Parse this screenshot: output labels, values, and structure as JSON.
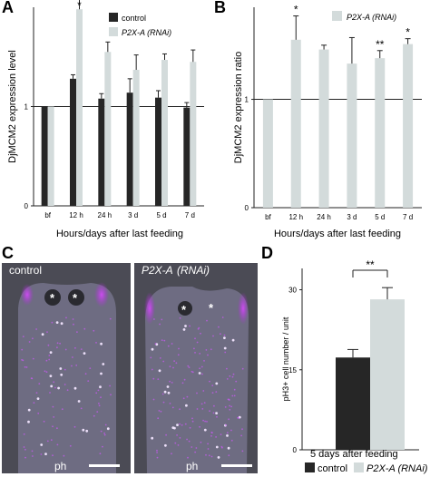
{
  "panels": {
    "A": {
      "letter": "A"
    },
    "B": {
      "letter": "B"
    },
    "C": {
      "letter": "C",
      "left_label": "control",
      "right_label_main": "P2X-A",
      "right_label_paren": "(RNAi)",
      "bottom_labels": [
        "ph",
        "ph"
      ]
    },
    "D": {
      "letter": "D",
      "caption": "5 days after feeding",
      "significance": "**",
      "legend": [
        "control",
        "P2X-A (RNAi)"
      ]
    }
  },
  "colors": {
    "control": "#262626",
    "rnai": "#d3dbdb",
    "micrograph_bg": "#4b4b55",
    "worm": "#6c6a7e",
    "glow": "#b327e6"
  },
  "chart_data": [
    {
      "id": "A",
      "type": "bar",
      "ylabel": "DjMCM2  expression level",
      "xlabel": "Hours/days after last feeding",
      "categories": [
        "bf",
        "12 h",
        "24 h",
        "3 d",
        "5 d",
        "7 d"
      ],
      "ylim": [
        0,
        2
      ],
      "yticks": [
        0,
        1
      ],
      "reference_line": 1,
      "series": [
        {
          "name": "control",
          "values": [
            1.0,
            1.28,
            1.08,
            1.14,
            1.09,
            0.99
          ],
          "errors": [
            0,
            0.04,
            0.05,
            0.14,
            0.07,
            0.05
          ]
        },
        {
          "name": "P2X-A (RNAi)",
          "values": [
            1.0,
            1.98,
            1.55,
            1.37,
            1.47,
            1.45
          ],
          "errors": [
            0,
            0.28,
            0.1,
            0.15,
            0.06,
            0.12
          ]
        }
      ],
      "annotations": [
        {
          "category": "12 h",
          "text": "*"
        }
      ],
      "legend_position": "top-right"
    },
    {
      "id": "B",
      "type": "bar",
      "ylabel": "DjMCM2  expression ratio",
      "xlabel": "Hours/days after last feeding",
      "categories": [
        "bf",
        "12 h",
        "24 h",
        "3 d",
        "5 d",
        "7 d"
      ],
      "ylim": [
        0,
        1.85
      ],
      "yticks": [
        0,
        1
      ],
      "reference_line": 1,
      "series": [
        {
          "name": "P2X-A (RNAi)",
          "values": [
            1.0,
            1.55,
            1.46,
            1.33,
            1.38,
            1.51
          ],
          "errors": [
            0,
            0.22,
            0.04,
            0.24,
            0.07,
            0.05
          ]
        }
      ],
      "annotations": [
        {
          "category": "12 h",
          "text": "*"
        },
        {
          "category": "5 d",
          "text": "**"
        },
        {
          "category": "7 d",
          "text": "*"
        }
      ],
      "legend_position": "top-right"
    },
    {
      "id": "D",
      "type": "bar",
      "ylabel": "pH3+ cell number / unit",
      "xlabel": "",
      "categories": [
        "5 days after feeding"
      ],
      "ylim": [
        0,
        34
      ],
      "yticks": [
        0,
        15,
        30
      ],
      "series": [
        {
          "name": "control",
          "values": [
            17.3
          ],
          "errors": [
            1.5
          ]
        },
        {
          "name": "P2X-A (RNAi)",
          "values": [
            28.2
          ],
          "errors": [
            2.2
          ]
        }
      ],
      "legend_position": "bottom"
    }
  ]
}
